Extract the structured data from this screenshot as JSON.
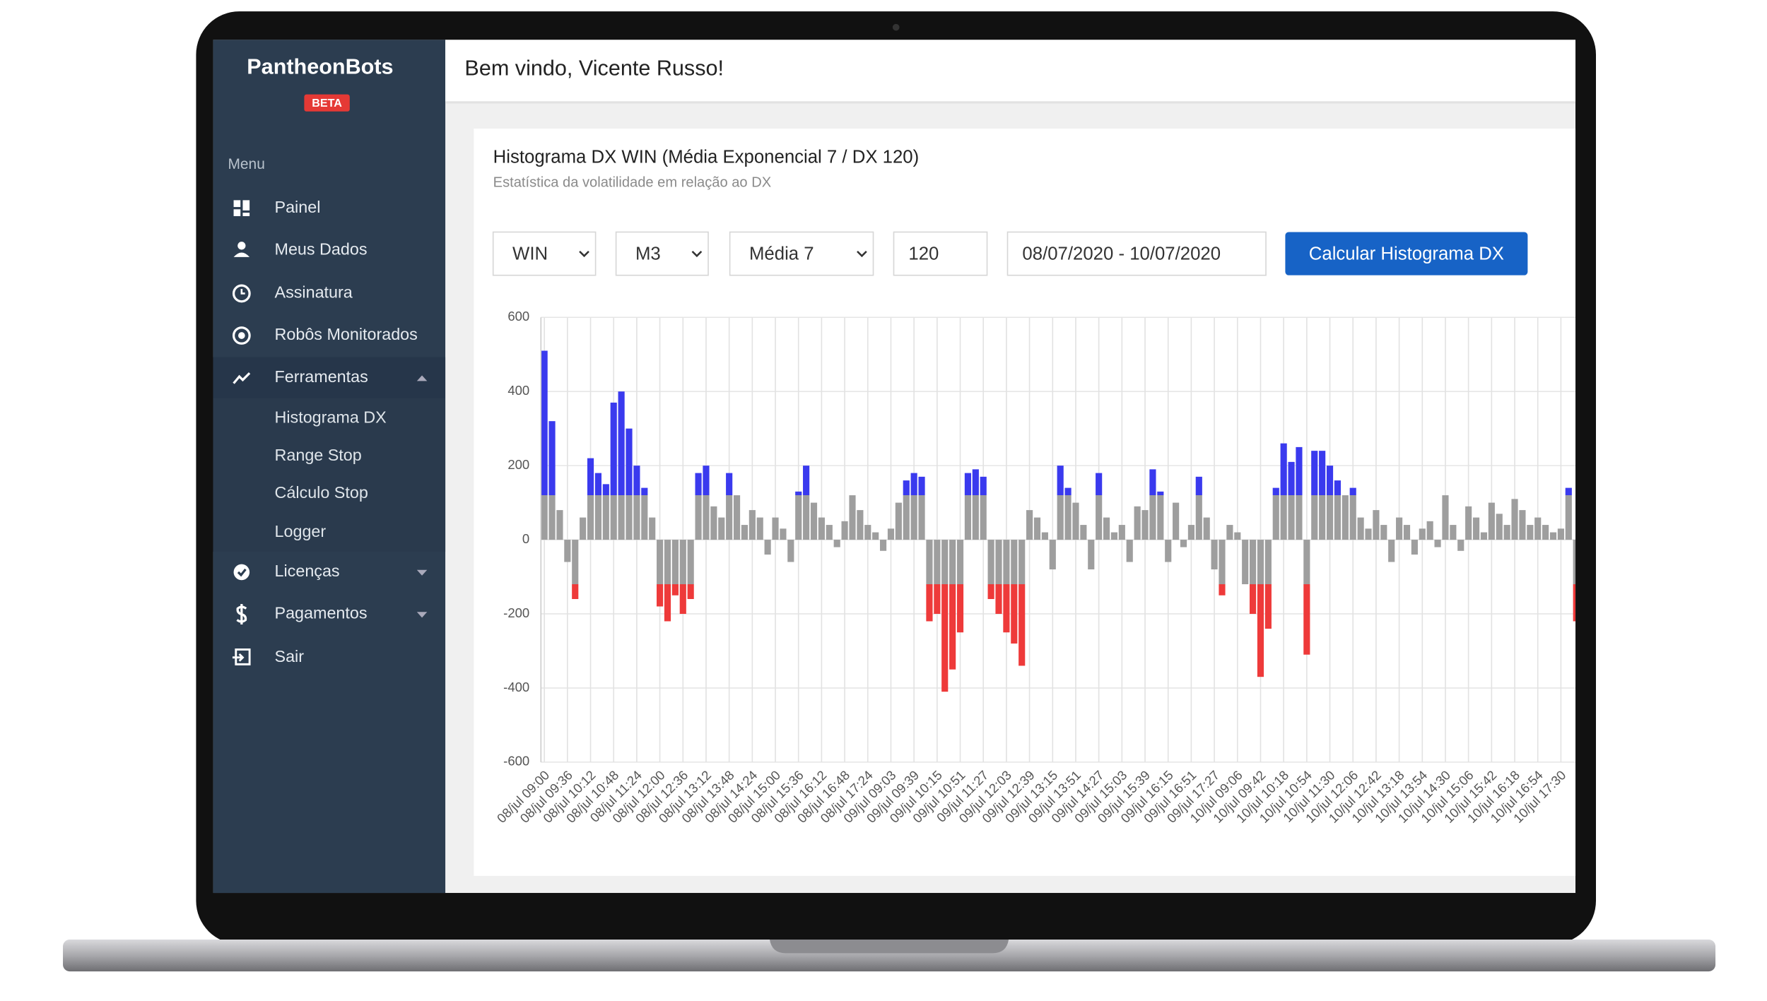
{
  "sidebar": {
    "brand": "PantheonBots",
    "badge": "BETA",
    "menu_label": "Menu",
    "items": [
      "Painel",
      "Meus Dados",
      "Assinatura",
      "Robôs Monitorados",
      "Ferramentas",
      "Licenças",
      "Pagamentos",
      "Sair"
    ],
    "submenu": [
      "Histograma DX",
      "Range Stop",
      "Cálculo Stop",
      "Logger"
    ]
  },
  "header": {
    "greeting": "Bem vindo, Vicente Russo!"
  },
  "controls": {
    "asset": "WIN",
    "timeframe": "M3",
    "average": "Média 7",
    "period": "120",
    "date_range": "08/07/2020 - 10/07/2020",
    "button": "Calcular Histograma DX"
  },
  "chart_data": {
    "type": "bar",
    "title": "Histograma DX WIN (Média Exponencial 7 / DX 120)",
    "subtitle": "Estatística da volatilidade em relação ao DX",
    "categories": [
      "08/jul 09:00",
      null,
      null,
      "08/jul 09:36",
      null,
      null,
      "08/jul 10:12",
      null,
      null,
      "08/jul 10:48",
      null,
      null,
      "08/jul 11:24",
      null,
      null,
      "08/jul 12:00",
      null,
      null,
      "08/jul 12:36",
      null,
      null,
      "08/jul 13:12",
      null,
      null,
      "08/jul 13:48",
      null,
      null,
      "08/jul 14:24",
      null,
      null,
      "08/jul 15:00",
      null,
      null,
      "08/jul 15:36",
      null,
      null,
      "08/jul 16:12",
      null,
      null,
      "08/jul 16:48",
      null,
      null,
      "08/jul 17:24",
      null,
      null,
      "09/jul 09:03",
      null,
      null,
      "09/jul 09:39",
      null,
      null,
      "09/jul 10:15",
      null,
      null,
      "09/jul 10:51",
      null,
      null,
      "09/jul 11:27",
      null,
      null,
      "09/jul 12:03",
      null,
      null,
      "09/jul 12:39",
      null,
      null,
      "09/jul 13:15",
      null,
      null,
      "09/jul 13:51",
      null,
      null,
      "09/jul 14:27",
      null,
      null,
      "09/jul 15:03",
      null,
      null,
      "09/jul 15:39",
      null,
      null,
      "09/jul 16:15",
      null,
      null,
      "09/jul 16:51",
      null,
      null,
      "09/jul 17:27",
      null,
      null,
      "10/jul 09:06",
      null,
      null,
      "10/jul 09:42",
      null,
      null,
      "10/jul 10:18",
      null,
      null,
      "10/jul 10:54",
      null,
      null,
      "10/jul 11:30",
      null,
      null,
      "10/jul 12:06",
      null,
      null,
      "10/jul 12:42",
      null,
      null,
      "10/jul 13:18",
      null,
      null,
      "10/jul 13:54",
      null,
      null,
      "10/jul 14:30",
      null,
      null,
      "10/jul 15:06",
      null,
      null,
      "10/jul 15:42",
      null,
      null,
      "10/jul 16:18",
      null,
      null,
      "10/jul 16:54",
      null,
      null,
      "10/jul 17:30",
      null,
      null
    ],
    "values": [
      510,
      320,
      80,
      -60,
      -160,
      60,
      220,
      180,
      150,
      370,
      400,
      300,
      200,
      140,
      60,
      -180,
      -220,
      -150,
      -200,
      -160,
      180,
      200,
      90,
      60,
      180,
      120,
      40,
      80,
      60,
      -40,
      60,
      30,
      -60,
      130,
      200,
      100,
      60,
      40,
      -20,
      50,
      120,
      80,
      40,
      20,
      -30,
      30,
      100,
      160,
      180,
      170,
      -220,
      -200,
      -410,
      -350,
      -250,
      180,
      190,
      170,
      -160,
      -200,
      -250,
      -280,
      -340,
      80,
      60,
      20,
      -80,
      200,
      140,
      100,
      40,
      -80,
      180,
      60,
      20,
      40,
      -60,
      90,
      80,
      190,
      130,
      -60,
      100,
      -20,
      40,
      170,
      60,
      -80,
      -150,
      40,
      20,
      -120,
      -200,
      -370,
      -240,
      140,
      260,
      210,
      250,
      -310,
      240,
      240,
      200,
      160,
      120,
      140,
      60,
      30,
      80,
      40,
      -60,
      60,
      40,
      -40,
      30,
      50,
      -20,
      120,
      40,
      -30,
      90,
      60,
      20,
      100,
      70,
      40,
      110,
      80,
      40,
      60,
      40,
      20,
      30,
      140,
      -220
    ],
    "color": "#9e9e9e",
    "above_color": "#3a3aee",
    "below_color": "#ee3a3a",
    "highlight_threshold": 120,
    "ylim": [
      -600,
      600
    ],
    "yticks": [
      -600,
      -400,
      -200,
      0,
      200,
      400,
      600
    ],
    "grid": true
  }
}
